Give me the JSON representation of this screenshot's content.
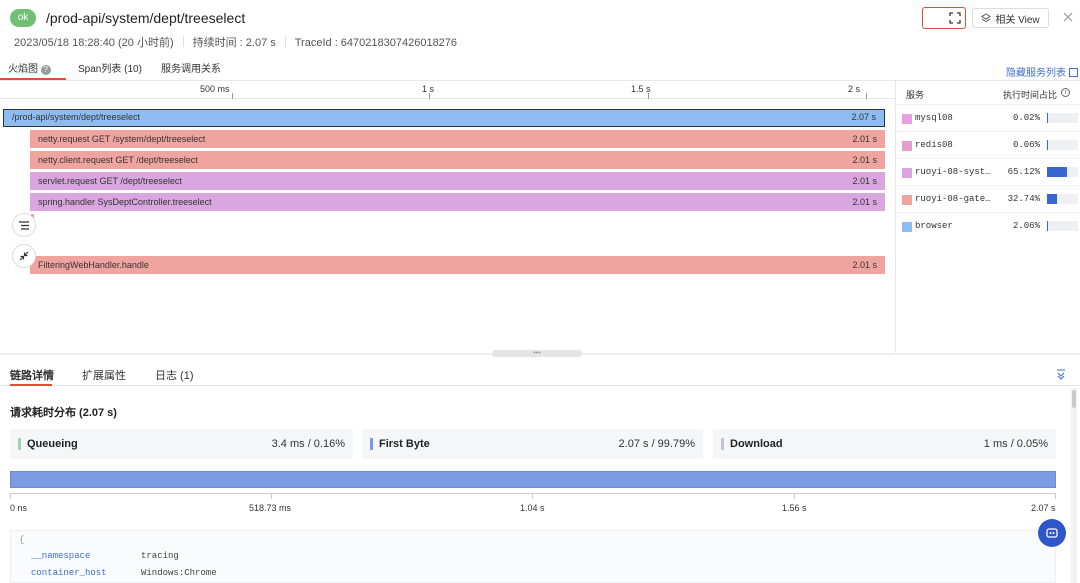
{
  "header": {
    "status": "ok",
    "title": "/prod-api/system/dept/treeselect",
    "timestamp": "2023/05/18 18:28:40 (20 小时前)",
    "duration_label": "持续时间 : 2.07 s",
    "traceid_label": "TraceId : 6470218307426018276",
    "view_button": "相关 View"
  },
  "tabs": {
    "flame": "火焰图",
    "span_list": "Span列表 (10)",
    "service_relation": "服务调用关系",
    "hide_service_list": "隐藏服务列表"
  },
  "ruler": {
    "t500": "500 ms",
    "t1": "1 s",
    "t15": "1.5 s",
    "t2": "2 s"
  },
  "spans": [
    {
      "name": "/prod-api/system/dept/treeselect",
      "duration": "2.07 s"
    },
    {
      "name": "netty.request GET /system/dept/treeselect",
      "duration": "2.01 s"
    },
    {
      "name": "netty.client.request GET /dept/treeselect",
      "duration": "2.01 s"
    },
    {
      "name": "servlet.request GET /dept/treeselect",
      "duration": "2.01 s"
    },
    {
      "name": "spring.handler SysDeptController.treeselect",
      "duration": "2.01 s"
    },
    {
      "name": "FilteringWebHandler.handle",
      "duration": "2.01 s"
    }
  ],
  "service_panel": {
    "col_service": "服务",
    "col_ratio": "执行时间占比",
    "rows": [
      {
        "name": "mysql08",
        "pct": "0.02%",
        "ratio": 0.0002,
        "color": "#e8a0e0"
      },
      {
        "name": "redis08",
        "pct": "0.06%",
        "ratio": 0.0006,
        "color": "#e89cc9"
      },
      {
        "name": "ruoyi-08-syst…",
        "pct": "65.12%",
        "ratio": 0.6512,
        "color": "#d9a6e0"
      },
      {
        "name": "ruoyi-08-gate…",
        "pct": "32.74%",
        "ratio": 0.3274,
        "color": "#f0a4a0"
      },
      {
        "name": "browser",
        "pct": "2.06%",
        "ratio": 0.0206,
        "color": "#8fbcf0"
      }
    ]
  },
  "bottom_tabs": {
    "detail": "链路详情",
    "ext": "扩展属性",
    "log": "日志 (1)"
  },
  "section_title": "请求耗时分布 (2.07 s)",
  "timing": [
    {
      "label": "Queueing",
      "value": "3.4 ms  /  0.16%",
      "color": "#9fd2b0"
    },
    {
      "label": "First Byte",
      "value": "2.07 s  /  99.79%",
      "color": "#7d9ae3"
    },
    {
      "label": "Download",
      "value": "1 ms  /  0.05%",
      "color": "#c5bde6"
    }
  ],
  "axis": {
    "a0": "0 ns",
    "a1": "518.73 ms",
    "a2": "1.04 s",
    "a3": "1.56 s",
    "a4": "2.07 s"
  },
  "json": {
    "brace": "{",
    "k1": "__namespace",
    "v1": "tracing",
    "k2": "container_host",
    "v2": "Windows:Chrome"
  }
}
